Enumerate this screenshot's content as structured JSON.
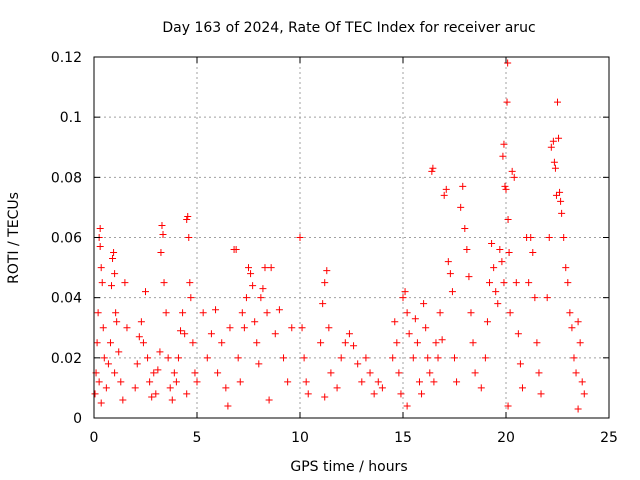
{
  "chart_data": {
    "type": "scatter",
    "title": "Day 163 of 2024, Rate Of TEC Index for receiver aruc",
    "xlabel": "GPS time / hours",
    "ylabel": "ROTI / TECUs",
    "xlim": [
      0,
      25
    ],
    "ylim": [
      0,
      0.12
    ],
    "xticks": [
      0,
      5,
      10,
      15,
      20,
      25
    ],
    "yticks": [
      0,
      0.02,
      0.04,
      0.06,
      0.08,
      0.1,
      0.12
    ],
    "xtick_labels": [
      "0",
      "5",
      "10",
      "15",
      "20",
      "25"
    ],
    "ytick_labels": [
      "0",
      "0.02",
      "0.04",
      "0.06",
      "0.08",
      "0.1",
      "0.12"
    ],
    "grid": true,
    "marker": "+",
    "color": "#ff0000",
    "series": [
      {
        "points": [
          [
            0.05,
            0.008
          ],
          [
            0.1,
            0.015
          ],
          [
            0.15,
            0.025
          ],
          [
            0.2,
            0.035
          ],
          [
            0.25,
            0.06
          ],
          [
            0.3,
            0.063
          ],
          [
            0.3,
            0.057
          ],
          [
            0.35,
            0.05
          ],
          [
            0.4,
            0.045
          ],
          [
            0.45,
            0.03
          ],
          [
            0.5,
            0.02
          ],
          [
            0.25,
            0.012
          ],
          [
            0.35,
            0.005
          ],
          [
            0.6,
            0.01
          ],
          [
            0.7,
            0.018
          ],
          [
            0.8,
            0.025
          ],
          [
            0.85,
            0.044
          ],
          [
            0.9,
            0.053
          ],
          [
            0.95,
            0.055
          ],
          [
            1.0,
            0.048
          ],
          [
            1.05,
            0.035
          ],
          [
            1.1,
            0.032
          ],
          [
            1.2,
            0.022
          ],
          [
            1.3,
            0.012
          ],
          [
            1.4,
            0.006
          ],
          [
            1.5,
            0.045
          ],
          [
            1.6,
            0.03
          ],
          [
            1.0,
            0.015
          ],
          [
            2.0,
            0.01
          ],
          [
            2.1,
            0.018
          ],
          [
            2.2,
            0.027
          ],
          [
            2.3,
            0.032
          ],
          [
            2.4,
            0.025
          ],
          [
            2.5,
            0.042
          ],
          [
            2.6,
            0.02
          ],
          [
            2.7,
            0.012
          ],
          [
            2.8,
            0.007
          ],
          [
            2.9,
            0.015
          ],
          [
            3.0,
            0.008
          ],
          [
            3.1,
            0.016
          ],
          [
            3.2,
            0.022
          ],
          [
            3.25,
            0.055
          ],
          [
            3.3,
            0.064
          ],
          [
            3.35,
            0.061
          ],
          [
            3.4,
            0.045
          ],
          [
            3.5,
            0.035
          ],
          [
            3.6,
            0.02
          ],
          [
            3.7,
            0.01
          ],
          [
            3.8,
            0.006
          ],
          [
            3.9,
            0.015
          ],
          [
            4.0,
            0.012
          ],
          [
            4.1,
            0.02
          ],
          [
            4.2,
            0.029
          ],
          [
            4.3,
            0.035
          ],
          [
            4.4,
            0.028
          ],
          [
            4.5,
            0.066
          ],
          [
            4.55,
            0.067
          ],
          [
            4.6,
            0.06
          ],
          [
            4.65,
            0.045
          ],
          [
            4.7,
            0.04
          ],
          [
            4.8,
            0.025
          ],
          [
            4.9,
            0.015
          ],
          [
            4.5,
            0.008
          ],
          [
            5.0,
            0.012
          ],
          [
            5.3,
            0.035
          ],
          [
            5.5,
            0.02
          ],
          [
            5.7,
            0.028
          ],
          [
            5.9,
            0.036
          ],
          [
            6.0,
            0.015
          ],
          [
            6.2,
            0.025
          ],
          [
            6.4,
            0.01
          ],
          [
            6.6,
            0.03
          ],
          [
            6.8,
            0.056
          ],
          [
            6.9,
            0.056
          ],
          [
            7.0,
            0.02
          ],
          [
            7.1,
            0.012
          ],
          [
            7.2,
            0.035
          ],
          [
            7.3,
            0.03
          ],
          [
            6.5,
            0.004
          ],
          [
            7.4,
            0.04
          ],
          [
            7.5,
            0.05
          ],
          [
            7.6,
            0.048
          ],
          [
            7.7,
            0.044
          ],
          [
            7.8,
            0.032
          ],
          [
            7.9,
            0.025
          ],
          [
            8.0,
            0.018
          ],
          [
            8.1,
            0.04
          ],
          [
            8.2,
            0.043
          ],
          [
            8.3,
            0.05
          ],
          [
            8.4,
            0.035
          ],
          [
            8.6,
            0.05
          ],
          [
            8.8,
            0.028
          ],
          [
            9.0,
            0.036
          ],
          [
            9.2,
            0.02
          ],
          [
            9.4,
            0.012
          ],
          [
            9.6,
            0.03
          ],
          [
            8.5,
            0.006
          ],
          [
            10.0,
            0.06
          ],
          [
            10.1,
            0.03
          ],
          [
            10.2,
            0.02
          ],
          [
            10.3,
            0.012
          ],
          [
            10.4,
            0.008
          ],
          [
            11.0,
            0.025
          ],
          [
            11.1,
            0.038
          ],
          [
            11.2,
            0.045
          ],
          [
            11.3,
            0.049
          ],
          [
            11.4,
            0.03
          ],
          [
            11.5,
            0.015
          ],
          [
            11.2,
            0.007
          ],
          [
            11.8,
            0.01
          ],
          [
            12.0,
            0.02
          ],
          [
            12.2,
            0.025
          ],
          [
            12.4,
            0.028
          ],
          [
            12.6,
            0.024
          ],
          [
            12.8,
            0.018
          ],
          [
            13.0,
            0.012
          ],
          [
            13.2,
            0.02
          ],
          [
            13.4,
            0.015
          ],
          [
            13.6,
            0.008
          ],
          [
            13.8,
            0.012
          ],
          [
            14.0,
            0.01
          ],
          [
            14.5,
            0.02
          ],
          [
            14.6,
            0.032
          ],
          [
            14.7,
            0.025
          ],
          [
            14.8,
            0.015
          ],
          [
            14.9,
            0.008
          ],
          [
            15.0,
            0.04
          ],
          [
            15.1,
            0.042
          ],
          [
            15.2,
            0.035
          ],
          [
            15.3,
            0.028
          ],
          [
            15.5,
            0.02
          ],
          [
            15.6,
            0.033
          ],
          [
            15.7,
            0.025
          ],
          [
            15.8,
            0.012
          ],
          [
            15.9,
            0.008
          ],
          [
            15.2,
            0.004
          ],
          [
            16.0,
            0.038
          ],
          [
            16.1,
            0.03
          ],
          [
            16.2,
            0.02
          ],
          [
            16.3,
            0.015
          ],
          [
            16.4,
            0.082
          ],
          [
            16.45,
            0.083
          ],
          [
            16.5,
            0.012
          ],
          [
            16.6,
            0.025
          ],
          [
            16.7,
            0.02
          ],
          [
            16.8,
            0.035
          ],
          [
            16.9,
            0.026
          ],
          [
            17.0,
            0.074
          ],
          [
            17.1,
            0.076
          ],
          [
            17.2,
            0.052
          ],
          [
            17.3,
            0.048
          ],
          [
            17.4,
            0.042
          ],
          [
            17.5,
            0.02
          ],
          [
            17.6,
            0.012
          ],
          [
            17.8,
            0.07
          ],
          [
            17.9,
            0.077
          ],
          [
            18.0,
            0.063
          ],
          [
            18.1,
            0.056
          ],
          [
            18.2,
            0.047
          ],
          [
            18.3,
            0.035
          ],
          [
            18.4,
            0.025
          ],
          [
            18.5,
            0.015
          ],
          [
            18.8,
            0.01
          ],
          [
            19.0,
            0.02
          ],
          [
            19.1,
            0.032
          ],
          [
            19.2,
            0.045
          ],
          [
            19.3,
            0.058
          ],
          [
            19.4,
            0.05
          ],
          [
            19.5,
            0.042
          ],
          [
            19.6,
            0.038
          ],
          [
            19.7,
            0.056
          ],
          [
            19.8,
            0.052
          ],
          [
            19.9,
            0.045
          ],
          [
            19.85,
            0.087
          ],
          [
            19.9,
            0.091
          ],
          [
            19.95,
            0.077
          ],
          [
            20.0,
            0.076
          ],
          [
            20.05,
            0.105
          ],
          [
            20.08,
            0.118
          ],
          [
            20.1,
            0.066
          ],
          [
            20.15,
            0.055
          ],
          [
            20.2,
            0.035
          ],
          [
            20.3,
            0.082
          ],
          [
            20.4,
            0.08
          ],
          [
            20.5,
            0.045
          ],
          [
            20.6,
            0.028
          ],
          [
            20.7,
            0.018
          ],
          [
            20.8,
            0.01
          ],
          [
            20.1,
            0.004
          ],
          [
            21.0,
            0.06
          ],
          [
            21.1,
            0.045
          ],
          [
            21.2,
            0.06
          ],
          [
            21.3,
            0.055
          ],
          [
            21.4,
            0.04
          ],
          [
            21.5,
            0.025
          ],
          [
            21.6,
            0.015
          ],
          [
            21.7,
            0.008
          ],
          [
            22.0,
            0.04
          ],
          [
            22.1,
            0.06
          ],
          [
            22.2,
            0.09
          ],
          [
            22.3,
            0.092
          ],
          [
            22.35,
            0.085
          ],
          [
            22.4,
            0.083
          ],
          [
            22.45,
            0.074
          ],
          [
            22.5,
            0.105
          ],
          [
            22.55,
            0.093
          ],
          [
            22.6,
            0.075
          ],
          [
            22.65,
            0.072
          ],
          [
            22.7,
            0.068
          ],
          [
            22.8,
            0.06
          ],
          [
            22.9,
            0.05
          ],
          [
            23.0,
            0.045
          ],
          [
            23.1,
            0.035
          ],
          [
            23.2,
            0.03
          ],
          [
            23.3,
            0.02
          ],
          [
            23.4,
            0.015
          ],
          [
            23.5,
            0.032
          ],
          [
            23.6,
            0.025
          ],
          [
            23.7,
            0.012
          ],
          [
            23.8,
            0.008
          ],
          [
            23.5,
            0.003
          ]
        ]
      }
    ]
  }
}
